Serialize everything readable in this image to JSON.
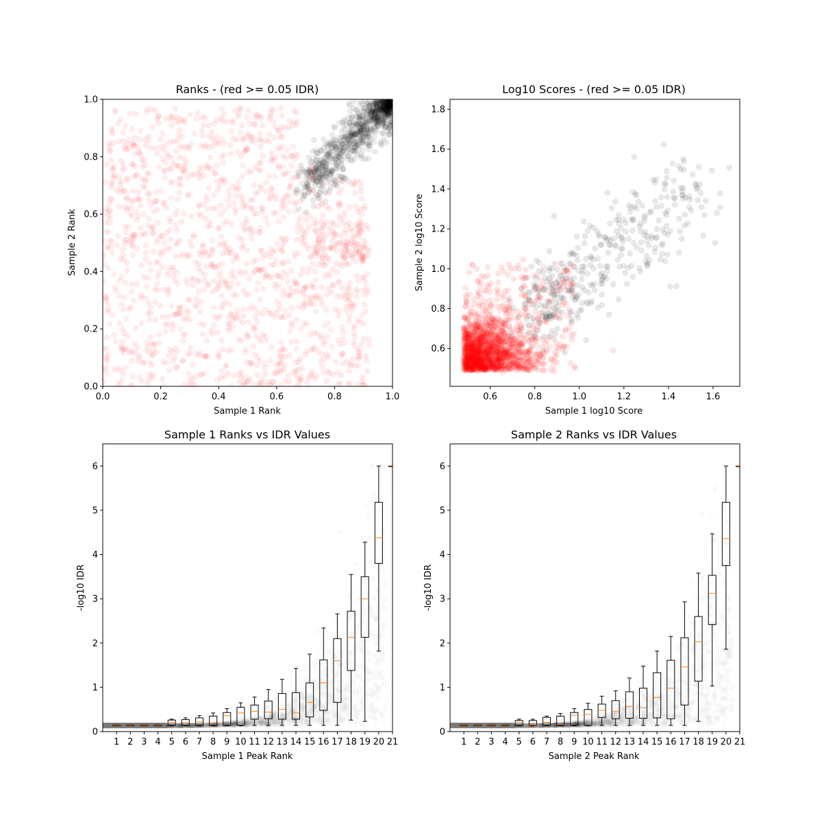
{
  "chart_data": [
    {
      "id": "ranks",
      "type": "scatter",
      "title": "Ranks - (red >= 0.05 IDR)",
      "xlabel": "Sample 1 Rank",
      "ylabel": "Sample 2 Rank",
      "xlim": [
        0,
        1
      ],
      "ylim": [
        0,
        1
      ],
      "xticks": [
        "0.0",
        "0.2",
        "0.4",
        "0.6",
        "0.8",
        "1.0"
      ],
      "yticks": [
        "0.0",
        "0.2",
        "0.4",
        "0.6",
        "0.8",
        "1.0"
      ],
      "colors": {
        "fail": "#ff0000",
        "pass": "#000000"
      },
      "description_points": "red: uniformly scattered over [0,0.9]x[0,0.97]; black: clustered near (0.85-1.0, 0.7-1.0)"
    },
    {
      "id": "scores",
      "type": "scatter",
      "title": "Log10 Scores - (red >= 0.05 IDR)",
      "xlabel": "Sample 1 log10 Score",
      "ylabel": "Sample 2 log10 Score",
      "xlim": [
        0.42,
        1.72
      ],
      "ylim": [
        0.41,
        1.85
      ],
      "xticks": [
        "0.6",
        "0.8",
        "1.0",
        "1.2",
        "1.4",
        "1.6"
      ],
      "yticks": [
        "0.6",
        "0.8",
        "1.0",
        "1.2",
        "1.4",
        "1.6",
        "1.8"
      ],
      "colors": {
        "fail": "#ff0000",
        "pass": "#000000"
      }
    },
    {
      "id": "s1idr",
      "type": "box",
      "title": "Sample 1 Ranks vs IDR Values",
      "xlabel": "Sample 1 Peak Rank",
      "ylabel": "-log10 IDR",
      "xlim": [
        0,
        21
      ],
      "ylim": [
        0,
        6.5
      ],
      "xticks": [
        "1",
        "2",
        "3",
        "4",
        "5",
        "6",
        "7",
        "8",
        "9",
        "10",
        "11",
        "12",
        "13",
        "14",
        "15",
        "16",
        "17",
        "18",
        "19",
        "20",
        "21"
      ],
      "yticks": [
        "0",
        "1",
        "2",
        "3",
        "4",
        "5",
        "6"
      ],
      "boxes": [
        {
          "pos": 1,
          "q1": 0.13,
          "median": 0.14,
          "q3": 0.15,
          "wlo": 0.13,
          "whi": 0.15
        },
        {
          "pos": 2,
          "q1": 0.13,
          "median": 0.14,
          "q3": 0.15,
          "wlo": 0.13,
          "whi": 0.15
        },
        {
          "pos": 3,
          "q1": 0.13,
          "median": 0.14,
          "q3": 0.15,
          "wlo": 0.13,
          "whi": 0.15
        },
        {
          "pos": 4,
          "q1": 0.13,
          "median": 0.14,
          "q3": 0.15,
          "wlo": 0.13,
          "whi": 0.15
        },
        {
          "pos": 5,
          "q1": 0.14,
          "median": 0.2,
          "q3": 0.26,
          "wlo": 0.13,
          "whi": 0.28
        },
        {
          "pos": 6,
          "q1": 0.14,
          "median": 0.2,
          "q3": 0.27,
          "wlo": 0.13,
          "whi": 0.31
        },
        {
          "pos": 7,
          "q1": 0.14,
          "median": 0.22,
          "q3": 0.31,
          "wlo": 0.13,
          "whi": 0.36
        },
        {
          "pos": 8,
          "q1": 0.14,
          "median": 0.19,
          "q3": 0.35,
          "wlo": 0.13,
          "whi": 0.42
        },
        {
          "pos": 9,
          "q1": 0.14,
          "median": 0.36,
          "q3": 0.43,
          "wlo": 0.13,
          "whi": 0.52
        },
        {
          "pos": 10,
          "q1": 0.14,
          "median": 0.42,
          "q3": 0.55,
          "wlo": 0.13,
          "whi": 0.65
        },
        {
          "pos": 11,
          "q1": 0.28,
          "median": 0.46,
          "q3": 0.6,
          "wlo": 0.14,
          "whi": 0.78
        },
        {
          "pos": 12,
          "q1": 0.29,
          "median": 0.44,
          "q3": 0.69,
          "wlo": 0.14,
          "whi": 0.95
        },
        {
          "pos": 13,
          "q1": 0.28,
          "median": 0.5,
          "q3": 0.86,
          "wlo": 0.14,
          "whi": 1.18
        },
        {
          "pos": 14,
          "q1": 0.28,
          "median": 0.42,
          "q3": 0.88,
          "wlo": 0.14,
          "whi": 1.43
        },
        {
          "pos": 15,
          "q1": 0.33,
          "median": 0.66,
          "q3": 1.1,
          "wlo": 0.14,
          "whi": 1.75
        },
        {
          "pos": 16,
          "q1": 0.48,
          "median": 1.1,
          "q3": 1.62,
          "wlo": 0.14,
          "whi": 2.34
        },
        {
          "pos": 17,
          "q1": 0.66,
          "median": 1.6,
          "q3": 2.1,
          "wlo": 0.14,
          "whi": 2.66
        },
        {
          "pos": 18,
          "q1": 1.38,
          "median": 2.13,
          "q3": 2.72,
          "wlo": 0.26,
          "whi": 3.55
        },
        {
          "pos": 19,
          "q1": 2.13,
          "median": 3.0,
          "q3": 3.5,
          "wlo": 0.23,
          "whi": 4.28
        },
        {
          "pos": 20,
          "q1": 3.8,
          "median": 4.38,
          "q3": 5.18,
          "wlo": 1.82,
          "whi": 6.0
        },
        {
          "pos": 21,
          "q1": 6.0,
          "median": 6.0,
          "q3": 6.0,
          "wlo": 6.0,
          "whi": 6.0
        }
      ]
    },
    {
      "id": "s2idr",
      "type": "box",
      "title": "Sample 2 Ranks vs IDR Values",
      "xlabel": "Sample 2 Peak Rank",
      "ylabel": "-log10 IDR",
      "xlim": [
        0,
        21
      ],
      "ylim": [
        0,
        6.5
      ],
      "xticks": [
        "1",
        "2",
        "3",
        "4",
        "5",
        "6",
        "7",
        "8",
        "9",
        "10",
        "11",
        "12",
        "13",
        "14",
        "15",
        "16",
        "17",
        "18",
        "19",
        "20",
        "21"
      ],
      "yticks": [
        "0",
        "1",
        "2",
        "3",
        "4",
        "5",
        "6"
      ],
      "boxes": [
        {
          "pos": 1,
          "q1": 0.13,
          "median": 0.14,
          "q3": 0.15,
          "wlo": 0.13,
          "whi": 0.15
        },
        {
          "pos": 2,
          "q1": 0.13,
          "median": 0.14,
          "q3": 0.15,
          "wlo": 0.13,
          "whi": 0.15
        },
        {
          "pos": 3,
          "q1": 0.13,
          "median": 0.14,
          "q3": 0.15,
          "wlo": 0.13,
          "whi": 0.15
        },
        {
          "pos": 4,
          "q1": 0.13,
          "median": 0.14,
          "q3": 0.15,
          "wlo": 0.13,
          "whi": 0.15
        },
        {
          "pos": 5,
          "q1": 0.14,
          "median": 0.2,
          "q3": 0.25,
          "wlo": 0.13,
          "whi": 0.28
        },
        {
          "pos": 6,
          "q1": 0.14,
          "median": 0.15,
          "q3": 0.25,
          "wlo": 0.13,
          "whi": 0.28
        },
        {
          "pos": 7,
          "q1": 0.14,
          "median": 0.21,
          "q3": 0.32,
          "wlo": 0.13,
          "whi": 0.35
        },
        {
          "pos": 8,
          "q1": 0.14,
          "median": 0.16,
          "q3": 0.35,
          "wlo": 0.13,
          "whi": 0.41
        },
        {
          "pos": 9,
          "q1": 0.14,
          "median": 0.37,
          "q3": 0.43,
          "wlo": 0.13,
          "whi": 0.52
        },
        {
          "pos": 10,
          "q1": 0.14,
          "median": 0.39,
          "q3": 0.5,
          "wlo": 0.13,
          "whi": 0.64
        },
        {
          "pos": 11,
          "q1": 0.32,
          "median": 0.48,
          "q3": 0.62,
          "wlo": 0.14,
          "whi": 0.8
        },
        {
          "pos": 12,
          "q1": 0.29,
          "median": 0.45,
          "q3": 0.7,
          "wlo": 0.14,
          "whi": 0.92
        },
        {
          "pos": 13,
          "q1": 0.3,
          "median": 0.57,
          "q3": 0.9,
          "wlo": 0.14,
          "whi": 1.21
        },
        {
          "pos": 14,
          "q1": 0.3,
          "median": 0.54,
          "q3": 0.98,
          "wlo": 0.14,
          "whi": 1.48
        },
        {
          "pos": 15,
          "q1": 0.31,
          "median": 0.77,
          "q3": 1.33,
          "wlo": 0.14,
          "whi": 1.82
        },
        {
          "pos": 16,
          "q1": 0.29,
          "median": 0.98,
          "q3": 1.61,
          "wlo": 0.14,
          "whi": 2.15
        },
        {
          "pos": 17,
          "q1": 0.6,
          "median": 1.46,
          "q3": 2.12,
          "wlo": 0.14,
          "whi": 2.93
        },
        {
          "pos": 18,
          "q1": 1.14,
          "median": 2.03,
          "q3": 2.6,
          "wlo": 0.23,
          "whi": 3.58
        },
        {
          "pos": 19,
          "q1": 2.42,
          "median": 3.12,
          "q3": 3.53,
          "wlo": 1.03,
          "whi": 4.47
        },
        {
          "pos": 20,
          "q1": 3.75,
          "median": 4.36,
          "q3": 5.18,
          "wlo": 1.86,
          "whi": 6.0
        },
        {
          "pos": 21,
          "q1": 6.0,
          "median": 6.0,
          "q3": 6.0,
          "wlo": 6.0,
          "whi": 6.0
        }
      ]
    }
  ]
}
